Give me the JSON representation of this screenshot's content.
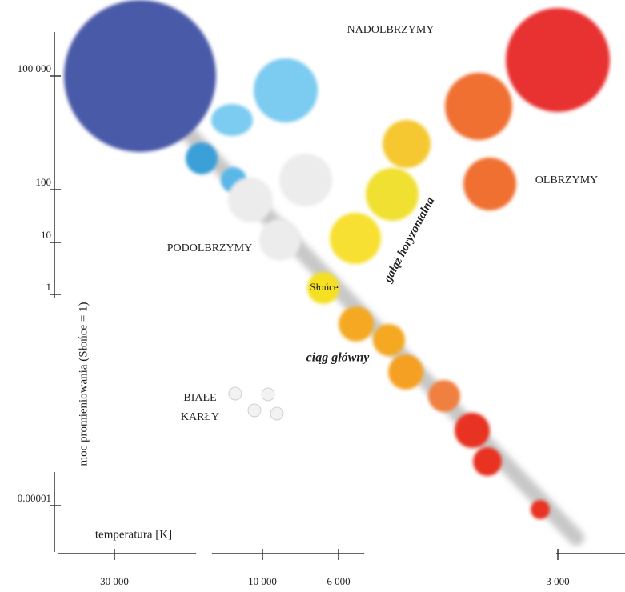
{
  "axes": {
    "y_label": "moc promieniowania (Słońce = 1)",
    "x_label": "temperatura [K]",
    "y_ticks": [
      "100 000",
      "100",
      "10",
      "1",
      "0.00001"
    ],
    "x_ticks": [
      "30 000",
      "10 000",
      "6 000",
      "3 000"
    ]
  },
  "labels": {
    "supergiants": "NADOLBRZYMY",
    "giants": "OLBRZYMY",
    "subgiants": "PODOLBRZYMY",
    "sun": "Słońce",
    "horizontal_branch": "gałąź horyzontalna",
    "main_sequence": "ciąg główny",
    "white_dwarfs": [
      "BIAŁE",
      "KARŁY"
    ]
  }
}
